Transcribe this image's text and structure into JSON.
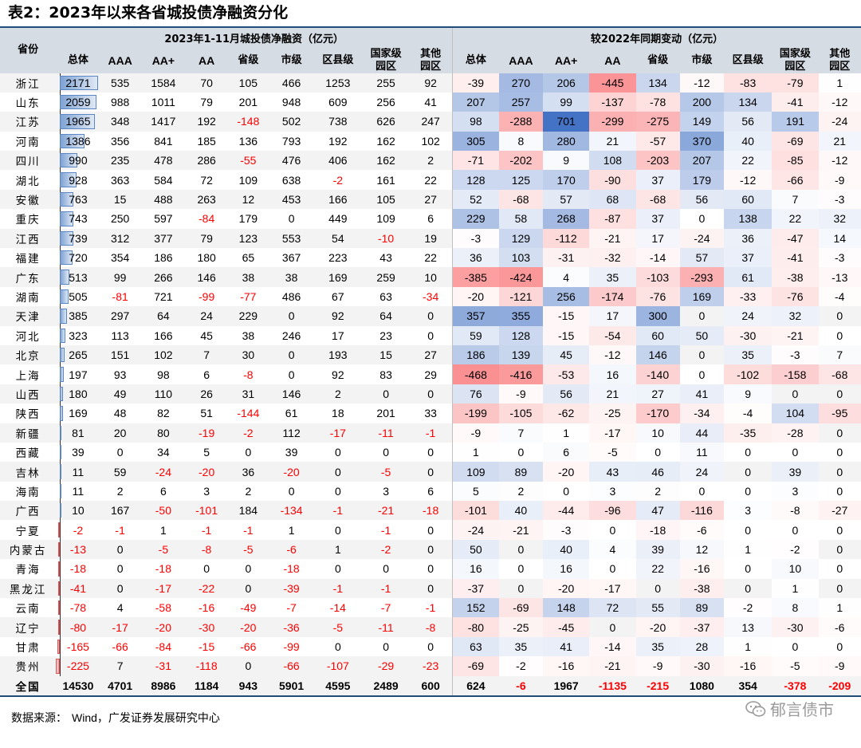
{
  "title": "表2：2023年以来各省城投债净融资分化",
  "header": {
    "province": "省份",
    "group1": "2023年1-11月城投债净融资（亿元）",
    "group2": "较2022年同期变动（亿元）",
    "cols": [
      "总体",
      "AAA",
      "AA+",
      "AA",
      "省级",
      "市级",
      "区县级",
      "国家级园区",
      "其他园区"
    ],
    "cols_line1": [
      "总体",
      "AAA",
      "AA+",
      "AA",
      "省级",
      "市级",
      "区县级",
      "国家级",
      "其他"
    ],
    "cols_line2": [
      "",
      "",
      "",
      "",
      "",
      "",
      "",
      "园区",
      "园区"
    ]
  },
  "colors": {
    "negative_text": "#ff0000",
    "pos_heat": "#4472c4",
    "neg_heat": "#f8696b",
    "header_bg": "#d6dce4"
  },
  "bar_max": 2171,
  "heat_max": 701,
  "rows": [
    {
      "prov": "浙江",
      "a": [
        2171,
        535,
        1584,
        70,
        105,
        466,
        1253,
        255,
        92
      ],
      "b": [
        -39,
        270,
        206,
        -445,
        134,
        -12,
        -83,
        -79,
        1
      ]
    },
    {
      "prov": "山东",
      "a": [
        2059,
        988,
        1011,
        79,
        201,
        948,
        609,
        256,
        41
      ],
      "b": [
        207,
        257,
        99,
        -137,
        -78,
        200,
        134,
        -41,
        -12
      ]
    },
    {
      "prov": "江苏",
      "a": [
        1965,
        348,
        1417,
        192,
        -148,
        502,
        738,
        626,
        247
      ],
      "b": [
        98,
        -288,
        701,
        -299,
        -275,
        149,
        56,
        191,
        -24
      ]
    },
    {
      "prov": "河南",
      "a": [
        1386,
        356,
        841,
        185,
        136,
        793,
        192,
        162,
        102
      ],
      "b": [
        305,
        8,
        280,
        21,
        -57,
        370,
        40,
        -69,
        21
      ]
    },
    {
      "prov": "四川",
      "a": [
        990,
        235,
        478,
        286,
        -55,
        476,
        406,
        162,
        2
      ],
      "b": [
        -71,
        -202,
        9,
        108,
        -203,
        207,
        22,
        -85,
        -12
      ]
    },
    {
      "prov": "湖北",
      "a": [
        928,
        363,
        584,
        72,
        109,
        638,
        -2,
        161,
        22
      ],
      "b": [
        128,
        125,
        170,
        -90,
        37,
        179,
        -12,
        -66,
        -9
      ]
    },
    {
      "prov": "安徽",
      "a": [
        763,
        15,
        488,
        263,
        12,
        453,
        166,
        105,
        27
      ],
      "b": [
        52,
        -68,
        57,
        68,
        -68,
        56,
        60,
        7,
        -3
      ]
    },
    {
      "prov": "重庆",
      "a": [
        743,
        250,
        597,
        -84,
        179,
        0,
        449,
        109,
        6
      ],
      "b": [
        229,
        58,
        268,
        -87,
        37,
        0,
        138,
        22,
        32
      ]
    },
    {
      "prov": "江西",
      "a": [
        739,
        312,
        377,
        79,
        123,
        553,
        54,
        -10,
        19
      ],
      "b": [
        -3,
        129,
        -112,
        -21,
        17,
        -24,
        36,
        -47,
        14
      ]
    },
    {
      "prov": "福建",
      "a": [
        720,
        354,
        186,
        180,
        65,
        367,
        223,
        43,
        22
      ],
      "b": [
        36,
        103,
        -31,
        -32,
        -14,
        57,
        37,
        -41,
        -3
      ]
    },
    {
      "prov": "广东",
      "a": [
        513,
        99,
        266,
        146,
        38,
        38,
        169,
        259,
        10
      ],
      "b": [
        -385,
        -424,
        4,
        35,
        -103,
        -293,
        61,
        -38,
        -13
      ]
    },
    {
      "prov": "湖南",
      "a": [
        505,
        -81,
        721,
        -99,
        -77,
        486,
        67,
        63,
        -34
      ],
      "b": [
        -20,
        -121,
        256,
        -174,
        -76,
        169,
        -33,
        -76,
        -4
      ]
    },
    {
      "prov": "天津",
      "a": [
        385,
        297,
        64,
        24,
        229,
        0,
        92,
        64,
        0
      ],
      "b": [
        357,
        355,
        -15,
        17,
        300,
        0,
        24,
        32,
        0
      ]
    },
    {
      "prov": "河北",
      "a": [
        323,
        113,
        166,
        45,
        38,
        246,
        17,
        23,
        0
      ],
      "b": [
        59,
        128,
        -15,
        -54,
        60,
        50,
        -30,
        -21,
        0
      ]
    },
    {
      "prov": "北京",
      "a": [
        265,
        151,
        102,
        7,
        30,
        0,
        193,
        15,
        27
      ],
      "b": [
        186,
        139,
        45,
        -12,
        146,
        0,
        35,
        -3,
        7
      ]
    },
    {
      "prov": "上海",
      "a": [
        197,
        93,
        98,
        6,
        -8,
        0,
        92,
        83,
        29
      ],
      "b": [
        -468,
        -416,
        -53,
        16,
        -140,
        0,
        -102,
        -158,
        -68
      ]
    },
    {
      "prov": "山西",
      "a": [
        180,
        49,
        110,
        26,
        31,
        146,
        2,
        0,
        0
      ],
      "b": [
        76,
        -9,
        56,
        21,
        27,
        41,
        9,
        0,
        0
      ]
    },
    {
      "prov": "陕西",
      "a": [
        169,
        48,
        82,
        51,
        -144,
        61,
        18,
        201,
        33
      ],
      "b": [
        -199,
        -105,
        -62,
        -25,
        -170,
        -34,
        -4,
        104,
        -95
      ]
    },
    {
      "prov": "新疆",
      "a": [
        81,
        20,
        80,
        -19,
        -2,
        112,
        -17,
        -11,
        -1
      ],
      "b": [
        -9,
        7,
        1,
        -17,
        10,
        44,
        -35,
        -28,
        0
      ]
    },
    {
      "prov": "西藏",
      "a": [
        39,
        0,
        34,
        5,
        0,
        39,
        0,
        0,
        0
      ],
      "b": [
        1,
        0,
        6,
        -5,
        0,
        11,
        0,
        0,
        0
      ]
    },
    {
      "prov": "吉林",
      "a": [
        11,
        59,
        -24,
        -20,
        36,
        -20,
        0,
        -5,
        0
      ],
      "b": [
        109,
        89,
        -20,
        43,
        46,
        24,
        0,
        39,
        0
      ]
    },
    {
      "prov": "海南",
      "a": [
        11,
        2,
        6,
        3,
        2,
        0,
        0,
        3,
        6
      ],
      "b": [
        5,
        2,
        0,
        3,
        2,
        0,
        0,
        3,
        0
      ]
    },
    {
      "prov": "广西",
      "a": [
        10,
        167,
        -50,
        -101,
        184,
        -134,
        -1,
        -21,
        -18
      ],
      "b": [
        -101,
        40,
        -44,
        -96,
        47,
        -116,
        3,
        -8,
        -27
      ]
    },
    {
      "prov": "宁夏",
      "a": [
        -2,
        -1,
        1,
        -1,
        -1,
        1,
        0,
        -1,
        0
      ],
      "b": [
        -24,
        -21,
        -3,
        0,
        -18,
        -6,
        0,
        0,
        0
      ]
    },
    {
      "prov": "内蒙古",
      "a": [
        -13,
        0,
        -5,
        -8,
        -5,
        -6,
        1,
        -2,
        0
      ],
      "b": [
        50,
        0,
        40,
        4,
        39,
        12,
        1,
        -2,
        0
      ]
    },
    {
      "prov": "青海",
      "a": [
        -18,
        0,
        -18,
        0,
        0,
        -18,
        0,
        0,
        0
      ],
      "b": [
        16,
        0,
        16,
        0,
        22,
        -16,
        0,
        10,
        0
      ]
    },
    {
      "prov": "黑龙江",
      "a": [
        -41,
        0,
        -17,
        -22,
        0,
        -39,
        -1,
        -1,
        0
      ],
      "b": [
        -37,
        0,
        -20,
        -17,
        0,
        -38,
        0,
        1,
        0
      ]
    },
    {
      "prov": "云南",
      "a": [
        -78,
        4,
        -58,
        -16,
        -49,
        -7,
        -14,
        -7,
        -1
      ],
      "b": [
        152,
        -69,
        148,
        72,
        55,
        89,
        -2,
        8,
        1
      ]
    },
    {
      "prov": "辽宁",
      "a": [
        -80,
        -17,
        -20,
        -30,
        -20,
        -36,
        -5,
        -11,
        -8
      ],
      "b": [
        -80,
        -25,
        -45,
        0,
        -20,
        -37,
        13,
        -30,
        -6
      ]
    },
    {
      "prov": "甘肃",
      "a": [
        -165,
        -66,
        -84,
        -15,
        -66,
        -99,
        0,
        0,
        0
      ],
      "b": [
        63,
        35,
        41,
        -14,
        35,
        28,
        1,
        0,
        0
      ]
    },
    {
      "prov": "贵州",
      "a": [
        -225,
        7,
        -31,
        -118,
        0,
        -66,
        -107,
        -29,
        -23
      ],
      "b": [
        -69,
        -2,
        -16,
        -21,
        -9,
        -30,
        -16,
        -5,
        -9
      ]
    }
  ],
  "total": {
    "prov": "全国",
    "a": [
      14530,
      4701,
      8986,
      1184,
      943,
      5901,
      4595,
      2489,
      600
    ],
    "b": [
      624,
      -6,
      1967,
      -1135,
      -215,
      1080,
      354,
      -378,
      -209
    ]
  },
  "footer": {
    "source_label": "数据来源：",
    "source_text": "Wind，广发证券发展研究中心"
  },
  "watermark": "郁言债市"
}
